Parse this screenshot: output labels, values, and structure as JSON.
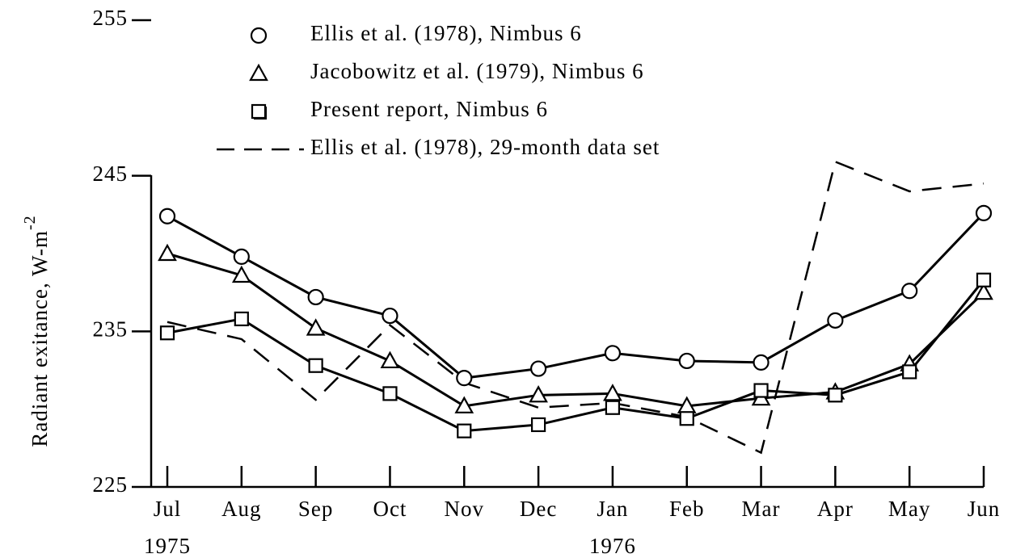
{
  "chart_data": {
    "type": "line",
    "ylabel": {
      "text": "Radiant exitance, W-m",
      "superscript": "-2"
    },
    "categories": [
      "Jul",
      "Aug",
      "Sep",
      "Oct",
      "Nov",
      "Dec",
      "Jan",
      "Feb",
      "Mar",
      "Apr",
      "May",
      "Jun"
    ],
    "annotations": [
      {
        "text": "1975",
        "category": 0
      },
      {
        "text": "1976",
        "category": 6
      }
    ],
    "ylim": [
      225,
      255
    ],
    "yticks": [
      225,
      235,
      245,
      255
    ],
    "series": [
      {
        "name": "Ellis et al. (1978), Nimbus 6",
        "color": "#000000",
        "marker": "circle",
        "dashed": false,
        "values": [
          242.4,
          239.8,
          237.2,
          236.0,
          232.0,
          232.6,
          233.6,
          233.1,
          233.0,
          235.7,
          237.6,
          242.6
        ]
      },
      {
        "name": "Jacobowitz et al. (1979), Nimbus 6",
        "color": "#000000",
        "marker": "triangle",
        "dashed": false,
        "values": [
          240.0,
          238.6,
          235.2,
          233.1,
          230.2,
          230.9,
          231.0,
          230.2,
          230.7,
          231.1,
          232.9,
          237.5
        ]
      },
      {
        "name": "Present report, Nimbus 6",
        "color": "#000000",
        "marker": "square",
        "dashed": false,
        "values": [
          234.9,
          235.8,
          232.8,
          231.0,
          228.6,
          229.0,
          230.1,
          229.4,
          231.2,
          230.9,
          232.4,
          238.3
        ]
      },
      {
        "name": "Ellis et al. (1978),  29-month data set",
        "color": "#000000",
        "marker": "none",
        "dashed": true,
        "values": [
          235.6,
          234.5,
          230.6,
          235.4,
          231.7,
          230.1,
          230.4,
          229.5,
          227.2,
          245.9,
          244.0,
          244.5
        ]
      }
    ]
  }
}
